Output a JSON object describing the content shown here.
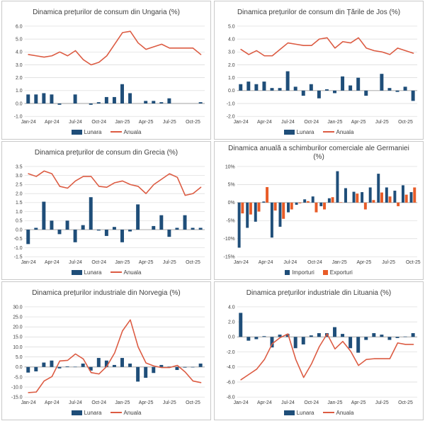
{
  "page": {
    "background": "#ffffff"
  },
  "colors": {
    "bar_blue": "#1F4E79",
    "line_red": "#DC5B42",
    "export_orange": "#E85C28",
    "grid": "#D9D9D9",
    "zero_axis": "#A0A0A0",
    "text": "#404040",
    "panel_border": "#C9C9C9"
  },
  "chart_data": [
    {
      "type": "bar+line",
      "title": "Dinamica prețurilor de consum din Ungaria (%)",
      "categories": [
        "Jan-24",
        "Feb-24",
        "Mar-24",
        "Apr-24",
        "May-24",
        "Jun-24",
        "Jul-24",
        "Aug-24",
        "Sep-24",
        "Oct-24",
        "Nov-24",
        "Dec-24",
        "Jan-25",
        "Feb-25",
        "Mar-25",
        "Apr-25",
        "May-25",
        "Jun-25",
        "Jul-25",
        "Aug-25",
        "Sep-25",
        "Oct-25",
        "Nov-25"
      ],
      "x_tick_labels": [
        "Jan-24",
        "Apr-24",
        "Jul-24",
        "Oct-24",
        "Jan-25",
        "Apr-25",
        "Jul-25",
        "Oct-25"
      ],
      "ylim": [
        -1,
        6
      ],
      "ytick_step": 1,
      "y_format": "fixed1",
      "grid": true,
      "legend_position": "bottom",
      "series": [
        {
          "name": "Lunara",
          "type": "bar",
          "color": "#1F4E79",
          "values": [
            0.7,
            0.7,
            0.8,
            0.7,
            -0.1,
            0,
            0.7,
            0,
            -0.1,
            0.1,
            0.5,
            0.5,
            1.5,
            0.8,
            0,
            0.2,
            0.2,
            0.1,
            0.4,
            0,
            0,
            0,
            0.1
          ]
        },
        {
          "name": "Anuala",
          "type": "line",
          "color": "#DC5B42",
          "values": [
            3.8,
            3.7,
            3.6,
            3.7,
            4.0,
            3.7,
            4.1,
            3.4,
            3.0,
            3.2,
            3.7,
            4.6,
            5.5,
            5.6,
            4.7,
            4.2,
            4.4,
            4.6,
            4.3,
            4.3,
            4.3,
            4.3,
            3.8
          ]
        }
      ]
    },
    {
      "type": "bar+line",
      "title": "Dinamica prețurilor de consum din Țările de Jos (%)",
      "categories": [
        "Jan-24",
        "Feb-24",
        "Mar-24",
        "Apr-24",
        "May-24",
        "Jun-24",
        "Jul-24",
        "Aug-24",
        "Sep-24",
        "Oct-24",
        "Nov-24",
        "Dec-24",
        "Jan-25",
        "Feb-25",
        "Mar-25",
        "Apr-25",
        "May-25",
        "Jun-25",
        "Jul-25",
        "Aug-25",
        "Sep-25",
        "Oct-25",
        "Nov-25"
      ],
      "x_tick_labels": [
        "Jan-24",
        "Apr-24",
        "Jul-24",
        "Oct-24",
        "Jan-25",
        "Apr-25",
        "Jul-25",
        "Oct-25"
      ],
      "ylim": [
        -2,
        5
      ],
      "ytick_step": 1,
      "y_format": "fixed1",
      "grid": true,
      "legend_position": "bottom",
      "series": [
        {
          "name": "Lunara",
          "type": "bar",
          "color": "#1F4E79",
          "values": [
            0.5,
            0.7,
            0.5,
            0.7,
            0.2,
            0.2,
            1.5,
            0.3,
            -0.4,
            0.5,
            -0.6,
            0.1,
            -0.2,
            1.1,
            0.4,
            1.0,
            -0.4,
            0,
            1.3,
            0.2,
            -0.1,
            0.3,
            -0.8
          ]
        },
        {
          "name": "Anuala",
          "type": "line",
          "color": "#DC5B42",
          "values": [
            3.2,
            2.8,
            3.1,
            2.7,
            2.7,
            3.2,
            3.7,
            3.6,
            3.5,
            3.5,
            4.0,
            4.1,
            3.3,
            3.8,
            3.7,
            4.1,
            3.3,
            3.1,
            3.0,
            2.8,
            3.3,
            3.1,
            2.9
          ]
        }
      ]
    },
    {
      "type": "bar+line",
      "title": "Dinamica prețurilor de consum din Grecia (%)",
      "categories": [
        "Jan-24",
        "Feb-24",
        "Mar-24",
        "Apr-24",
        "May-24",
        "Jun-24",
        "Jul-24",
        "Aug-24",
        "Sep-24",
        "Oct-24",
        "Nov-24",
        "Dec-24",
        "Jan-25",
        "Feb-25",
        "Mar-25",
        "Apr-25",
        "May-25",
        "Jun-25",
        "Jul-25",
        "Aug-25",
        "Sep-25",
        "Oct-25",
        "Nov-25"
      ],
      "x_tick_labels": [
        "Jan-24",
        "Apr-24",
        "Jul-24",
        "Oct-24",
        "Jan-25",
        "Apr-25",
        "Jul-25",
        "Oct-25"
      ],
      "ylim": [
        -1.5,
        3.5
      ],
      "ytick_step": 0.5,
      "y_format": "fixed1",
      "grid": true,
      "legend_position": "bottom",
      "series": [
        {
          "name": "Lunara",
          "type": "bar",
          "color": "#1F4E79",
          "values": [
            -0.8,
            0.1,
            1.55,
            0.5,
            -0.25,
            0.5,
            -0.7,
            0.25,
            1.8,
            -0.05,
            -0.35,
            0.15,
            -0.7,
            -0.1,
            1.4,
            0,
            0.2,
            0.8,
            -0.4,
            0.1,
            0.8,
            0.1,
            0.1
          ]
        },
        {
          "name": "Anuala",
          "type": "line",
          "color": "#DC5B42",
          "values": [
            3.1,
            2.95,
            3.25,
            3.1,
            2.4,
            2.3,
            2.7,
            2.95,
            2.95,
            2.4,
            2.35,
            2.6,
            2.7,
            2.5,
            2.4,
            2.0,
            2.5,
            2.8,
            3.1,
            2.9,
            1.9,
            2.0,
            2.35
          ]
        }
      ]
    },
    {
      "type": "bar",
      "title": "Dinamica anuală a schimburilor comerciale ale Germaniei",
      "title_line2": "(%)",
      "categories": [
        "Jan-24",
        "Feb-24",
        "Mar-24",
        "Apr-24",
        "May-24",
        "Jun-24",
        "Jul-24",
        "Aug-24",
        "Sep-24",
        "Oct-24",
        "Nov-24",
        "Dec-24",
        "Jan-25",
        "Feb-25",
        "Mar-25",
        "Apr-25",
        "May-25",
        "Jun-25",
        "Jul-25",
        "Aug-25",
        "Sep-25",
        "Oct-25"
      ],
      "x_tick_labels": [
        "Jan-24",
        "Apr-24",
        "Jul-24",
        "Oct-24",
        "Jan-25",
        "Apr-25",
        "Jul-25",
        "Oct-25"
      ],
      "ylim": [
        -15,
        10
      ],
      "ytick_step": 5,
      "y_format": "percent",
      "grid": true,
      "legend_position": "bottom",
      "series": [
        {
          "name": "Importuri",
          "type": "bar",
          "color": "#1F4E79",
          "values": [
            -12.5,
            -7.0,
            -5.3,
            0.3,
            -9.7,
            -6.7,
            -2.7,
            -0.6,
            0.9,
            1.7,
            -1.0,
            1.2,
            8.7,
            4.0,
            3.0,
            2.9,
            4.2,
            8.0,
            4.2,
            3.3,
            4.8,
            2.9
          ]
        },
        {
          "name": "Exporturi",
          "type": "bar",
          "color": "#E85C28",
          "values": [
            -3.0,
            -3.3,
            -2.5,
            4.3,
            -2.2,
            -4.5,
            -1.9,
            -0.2,
            0.4,
            -2.7,
            -1.9,
            1.5,
            0.1,
            0,
            2.5,
            -1.9,
            0.7,
            2.8,
            1.7,
            -1.0,
            2.2,
            4.2
          ]
        }
      ]
    },
    {
      "type": "bar+line",
      "title": "Dinamica prețurilor industriale din Norvegia (%)",
      "categories": [
        "Jan-24",
        "Feb-24",
        "Mar-24",
        "Apr-24",
        "May-24",
        "Jun-24",
        "Jul-24",
        "Aug-24",
        "Sep-24",
        "Oct-24",
        "Nov-24",
        "Dec-24",
        "Jan-25",
        "Feb-25",
        "Mar-25",
        "Apr-25",
        "May-25",
        "Jun-25",
        "Jul-25",
        "Aug-25",
        "Sep-25",
        "Oct-25",
        "Nov-25"
      ],
      "x_tick_labels": [
        "Jan-24",
        "Apr-24",
        "Jul-24",
        "Oct-24",
        "Jan-25",
        "Apr-25",
        "Jul-25",
        "Oct-25"
      ],
      "ylim": [
        -15,
        30
      ],
      "ytick_step": 5,
      "y_format": "fixed1",
      "grid": true,
      "legend_position": "bottom",
      "series": [
        {
          "name": "Lunara",
          "type": "bar",
          "color": "#1F4E79",
          "values": [
            -2.8,
            -2.2,
            2.2,
            3.2,
            -0.7,
            0.3,
            0.1,
            1.7,
            -1.8,
            4.5,
            3.2,
            1.0,
            4.5,
            1.7,
            -7.3,
            -5.4,
            -3.0,
            1.0,
            0.2,
            -1.5,
            -0.3,
            -0.2,
            1.7
          ]
        },
        {
          "name": "Anuala",
          "type": "line",
          "color": "#DC5B42",
          "values": [
            -12.8,
            -12.5,
            -7.0,
            -4.8,
            3.0,
            3.3,
            6.5,
            4.0,
            -2.8,
            -3.5,
            0.3,
            7.0,
            18.0,
            23.5,
            10.0,
            2.0,
            0.5,
            -0.3,
            -0.3,
            0.8,
            -2.5,
            -7.0,
            -7.8
          ]
        }
      ]
    },
    {
      "type": "bar+line",
      "title": "Dinamica prețurilor industriale din Lituania (%)",
      "categories": [
        "Jan-24",
        "Feb-24",
        "Mar-24",
        "Apr-24",
        "May-24",
        "Jun-24",
        "Jul-24",
        "Aug-24",
        "Sep-24",
        "Oct-24",
        "Nov-24",
        "Dec-24",
        "Jan-25",
        "Feb-25",
        "Mar-25",
        "Apr-25",
        "May-25",
        "Jun-25",
        "Jul-25",
        "Aug-25",
        "Sep-25",
        "Oct-25",
        "Nov-25"
      ],
      "x_tick_labels": [
        "Jan-24",
        "Apr-24",
        "Jul-24",
        "Oct-24",
        "Jan-25",
        "Apr-25",
        "Jul-25",
        "Oct-25"
      ],
      "ylim": [
        -8,
        4
      ],
      "ytick_step": 2,
      "y_format": "fixed1",
      "grid": true,
      "legend_position": "bottom",
      "series": [
        {
          "name": "Lunara",
          "type": "bar",
          "color": "#1F4E79",
          "values": [
            3.2,
            -0.5,
            -0.3,
            0.1,
            -1.4,
            0.3,
            0.4,
            -1.5,
            -1.0,
            0.2,
            0.5,
            0.5,
            1.3,
            0.4,
            -1.5,
            -2.1,
            -0.4,
            0.5,
            0.3,
            -0.4,
            -0.15,
            0.05,
            0.5
          ]
        },
        {
          "name": "Anuala",
          "type": "line",
          "color": "#DC5B42",
          "values": [
            -5.7,
            -5.0,
            -4.3,
            -3.0,
            -0.9,
            -0.1,
            0.4,
            -3.0,
            -5.4,
            -3.6,
            -1.3,
            0.4,
            -1.6,
            -0.6,
            -1.9,
            -3.8,
            -3.0,
            -2.9,
            -2.9,
            -2.9,
            -0.8,
            -1.0,
            -1.0
          ]
        }
      ]
    }
  ]
}
